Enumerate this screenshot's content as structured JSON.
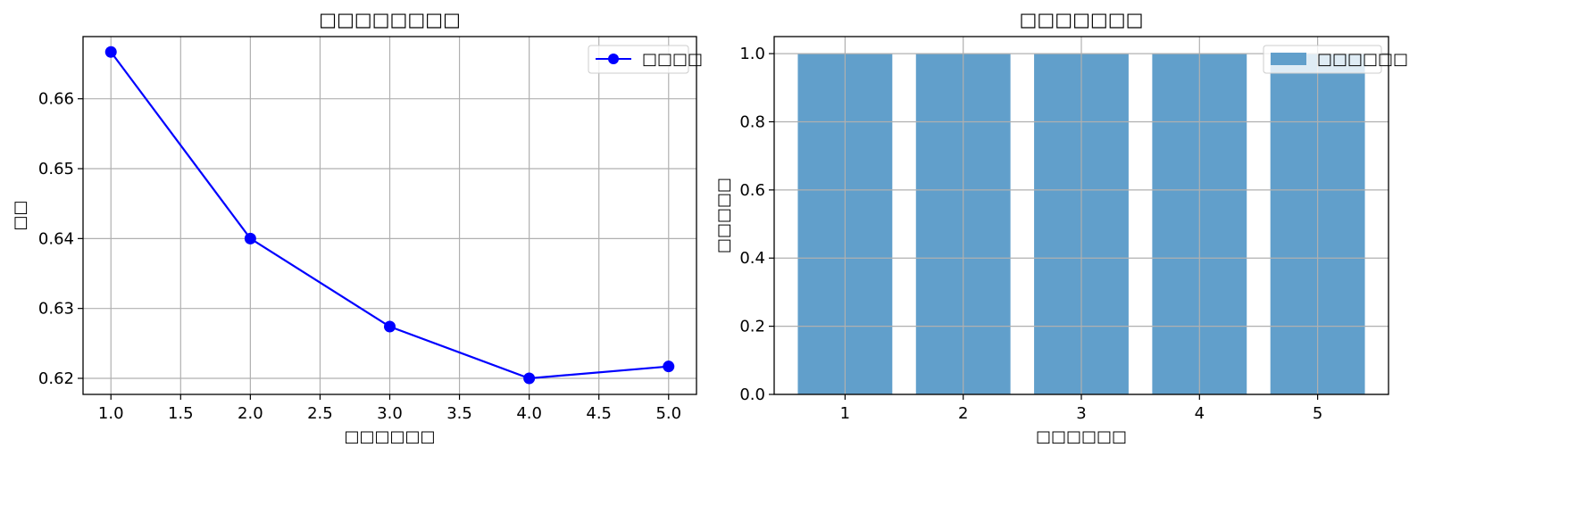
{
  "chart_data": [
    {
      "type": "line",
      "title": "□□□□□□□□",
      "xlabel": "□□□□□□",
      "ylabel": "□□",
      "xlim": [
        0.8,
        5.2
      ],
      "ylim": [
        0.6177,
        0.6689
      ],
      "xticks": [
        "1.0",
        "1.5",
        "2.0",
        "2.5",
        "3.0",
        "3.5",
        "4.0",
        "4.5",
        "5.0"
      ],
      "yticks": [
        "0.62",
        "0.63",
        "0.64",
        "0.65",
        "0.66"
      ],
      "grid": true,
      "legend_position": "top-right",
      "series": [
        {
          "name": "□□□□",
          "color": "#0000ff",
          "marker": "circle",
          "x": [
            1,
            2,
            3,
            4,
            5
          ],
          "y": [
            0.6667,
            0.64,
            0.6274,
            0.62,
            0.6217
          ]
        }
      ]
    },
    {
      "type": "bar",
      "title": "□□□□□□□",
      "xlabel": "□□□□□□",
      "ylabel": "□□□□□",
      "categories": [
        "1",
        "2",
        "3",
        "4",
        "5"
      ],
      "ylim": [
        0.0,
        1.05
      ],
      "yticks": [
        "0.0",
        "0.2",
        "0.4",
        "0.6",
        "0.8",
        "1.0"
      ],
      "grid": true,
      "legend_position": "top-right",
      "series": [
        {
          "name": "□□□□□□",
          "color": "#619fcb",
          "values": [
            1.0,
            1.0,
            1.0,
            1.0,
            1.0
          ]
        }
      ]
    }
  ]
}
